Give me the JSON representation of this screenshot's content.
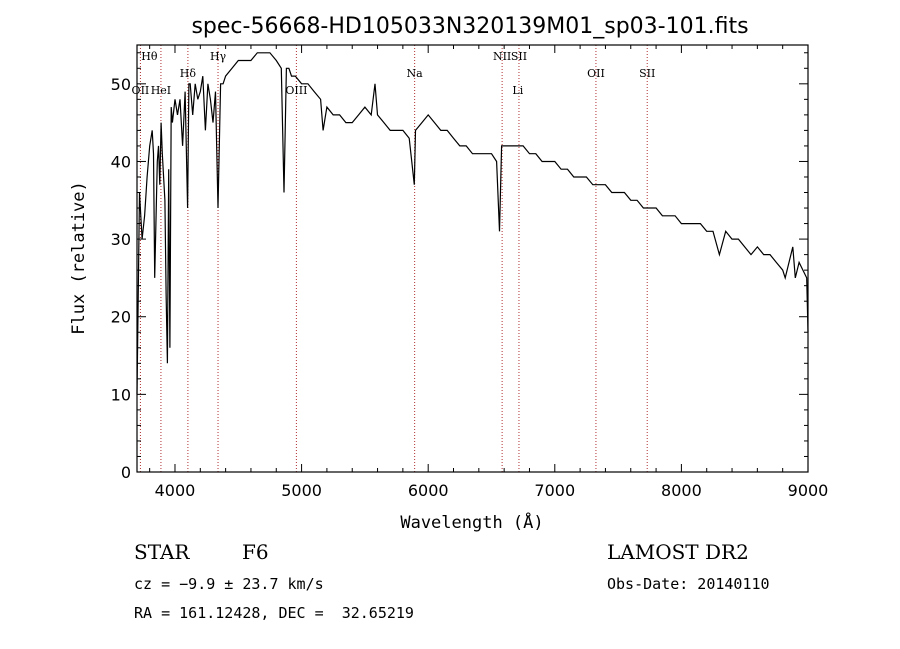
{
  "chart_data": {
    "type": "line",
    "title": "spec-56668-HD105033N320139M01_sp03-101.fits",
    "xlabel": "Wavelength (Å)",
    "ylabel": "Flux (relative)",
    "xlim": [
      3700,
      9000
    ],
    "ylim": [
      0,
      55
    ],
    "xticks": [
      4000,
      5000,
      6000,
      7000,
      8000,
      9000
    ],
    "yticks": [
      0,
      10,
      20,
      30,
      40,
      50
    ],
    "grid": false,
    "series": [
      {
        "x": [
          3700,
          3720,
          3740,
          3760,
          3780,
          3800,
          3820,
          3830,
          3840,
          3860,
          3870,
          3880,
          3890,
          3900,
          3920,
          3930,
          3940,
          3950,
          3960,
          3970,
          3980,
          4000,
          4020,
          4040,
          4060,
          4080,
          4100,
          4110,
          4120,
          4140,
          4160,
          4180,
          4200,
          4220,
          4240,
          4260,
          4280,
          4300,
          4320,
          4340,
          4360,
          4380,
          4400,
          4450,
          4500,
          4550,
          4600,
          4650,
          4700,
          4750,
          4800,
          4840,
          4861,
          4880,
          4900,
          4920,
          4950,
          5000,
          5050,
          5100,
          5150,
          5170,
          5190,
          5200,
          5250,
          5300,
          5350,
          5400,
          5450,
          5500,
          5550,
          5580,
          5600,
          5650,
          5700,
          5750,
          5800,
          5850,
          5890,
          5900,
          5950,
          6000,
          6050,
          6100,
          6150,
          6200,
          6250,
          6300,
          6350,
          6400,
          6450,
          6500,
          6540,
          6563,
          6580,
          6600,
          6650,
          6700,
          6750,
          6800,
          6850,
          6900,
          6950,
          7000,
          7050,
          7100,
          7150,
          7200,
          7250,
          7300,
          7350,
          7400,
          7450,
          7500,
          7550,
          7600,
          7650,
          7700,
          7750,
          7800,
          7850,
          7900,
          7950,
          8000,
          8050,
          8100,
          8150,
          8200,
          8250,
          8300,
          8350,
          8400,
          8450,
          8500,
          8550,
          8600,
          8650,
          8700,
          8750,
          8800,
          8820,
          8850,
          8880,
          8900,
          8930,
          8960,
          8990,
          9000
        ],
        "y": [
          10,
          36,
          30,
          33,
          38,
          42,
          44,
          41,
          25,
          40,
          42,
          37,
          45,
          41,
          35,
          23,
          14,
          39,
          16,
          47,
          45,
          48,
          46,
          48,
          42,
          49,
          34,
          50,
          50,
          46,
          50,
          48,
          49,
          51,
          44,
          50,
          48,
          45,
          49,
          34,
          50,
          50,
          51,
          52,
          53,
          53,
          53,
          54,
          54,
          54,
          53,
          52,
          36,
          52,
          52,
          51,
          51,
          50,
          50,
          49,
          48,
          44,
          46,
          47,
          46,
          46,
          45,
          45,
          46,
          47,
          46,
          50,
          46,
          45,
          44,
          44,
          44,
          43,
          37,
          44,
          45,
          46,
          45,
          44,
          44,
          43,
          42,
          42,
          41,
          41,
          41,
          41,
          40,
          31,
          42,
          42,
          42,
          42,
          42,
          41,
          41,
          40,
          40,
          40,
          39,
          39,
          38,
          38,
          38,
          37,
          37,
          37,
          36,
          36,
          36,
          35,
          35,
          34,
          34,
          34,
          33,
          33,
          33,
          32,
          32,
          32,
          32,
          31,
          31,
          28,
          31,
          30,
          30,
          29,
          28,
          29,
          28,
          28,
          27,
          26,
          25,
          27,
          29,
          25,
          27,
          26,
          25,
          18
        ]
      }
    ],
    "annotations": [
      {
        "label": "Hθ",
        "x": 3798,
        "row": 1
      },
      {
        "label": "OII",
        "x": 3727,
        "row": 3
      },
      {
        "label": "HeI",
        "x": 3889,
        "row": 3
      },
      {
        "label": "Hδ",
        "x": 4102,
        "row": 2
      },
      {
        "label": "Hγ",
        "x": 4340,
        "row": 1
      },
      {
        "label": "OIII",
        "x": 4959,
        "row": 3
      },
      {
        "label": "Na",
        "x": 5893,
        "row": 2
      },
      {
        "label": "NII",
        "x": 6584,
        "row": 1
      },
      {
        "label": "SII",
        "x": 6717,
        "row": 1
      },
      {
        "label": "Li",
        "x": 6708,
        "row": 3
      },
      {
        "label": "OII",
        "x": 7325,
        "row": 2
      },
      {
        "label": "SII",
        "x": 7730,
        "row": 2
      }
    ],
    "marker_lines": [
      3727,
      3889,
      4102,
      4340,
      4959,
      5893,
      6584,
      6717,
      7325,
      7730
    ]
  },
  "info": {
    "object_type": "STAR",
    "subclass": "F6",
    "survey": "LAMOST DR2",
    "cz": "cz = −9.9 ± 23.7 km/s",
    "obs_date": "Obs-Date: 20140110",
    "coords": "RA = 161.12428, DEC =  32.65219"
  }
}
